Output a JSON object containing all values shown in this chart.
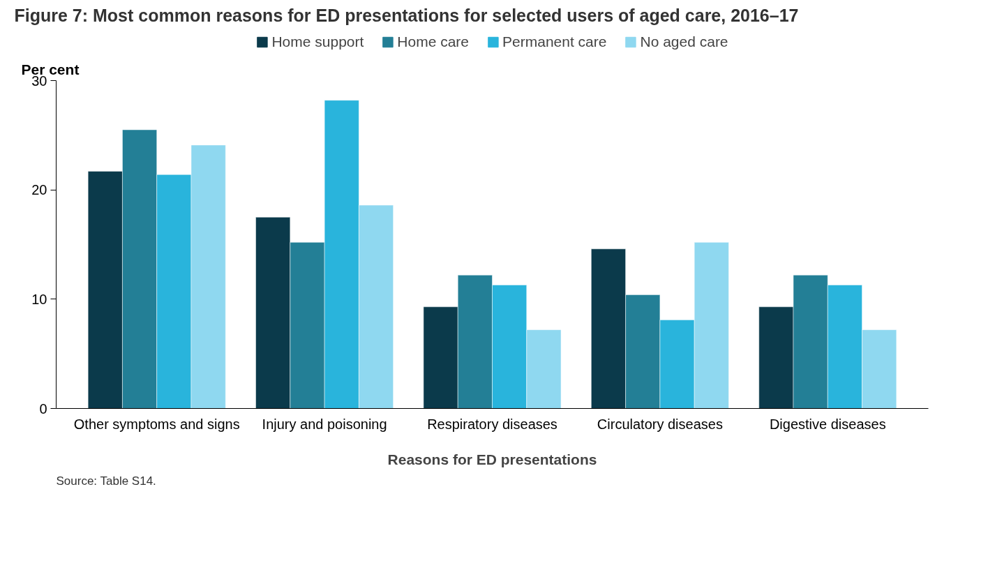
{
  "chart_data": {
    "type": "bar",
    "title": "Figure 7: Most common reasons for ED presentations for selected users of aged care, 2016–17",
    "ylabel": "Per cent",
    "xlabel": "Reasons for ED presentations",
    "categories": [
      "Other symptoms and signs",
      "Injury and poisoning",
      "Respiratory diseases",
      "Circulatory diseases",
      "Digestive diseases"
    ],
    "series": [
      {
        "name": "Home support",
        "color": "#0b3a4b",
        "values": [
          21.7,
          17.5,
          9.3,
          14.6,
          9.3
        ]
      },
      {
        "name": "Home care",
        "color": "#237f96",
        "values": [
          25.5,
          15.2,
          12.2,
          10.4,
          12.2
        ]
      },
      {
        "name": "Permanent care",
        "color": "#29b4dc",
        "values": [
          21.4,
          28.2,
          11.3,
          8.1,
          11.3
        ]
      },
      {
        "name": "No aged care",
        "color": "#8fd8f0",
        "values": [
          24.1,
          18.6,
          7.2,
          15.2,
          7.2
        ]
      }
    ],
    "ylim": [
      0,
      30
    ],
    "yticks": [
      0,
      10,
      20,
      30
    ],
    "grid": false,
    "legend": "top",
    "annotations": [
      "Source: Table S14."
    ]
  }
}
